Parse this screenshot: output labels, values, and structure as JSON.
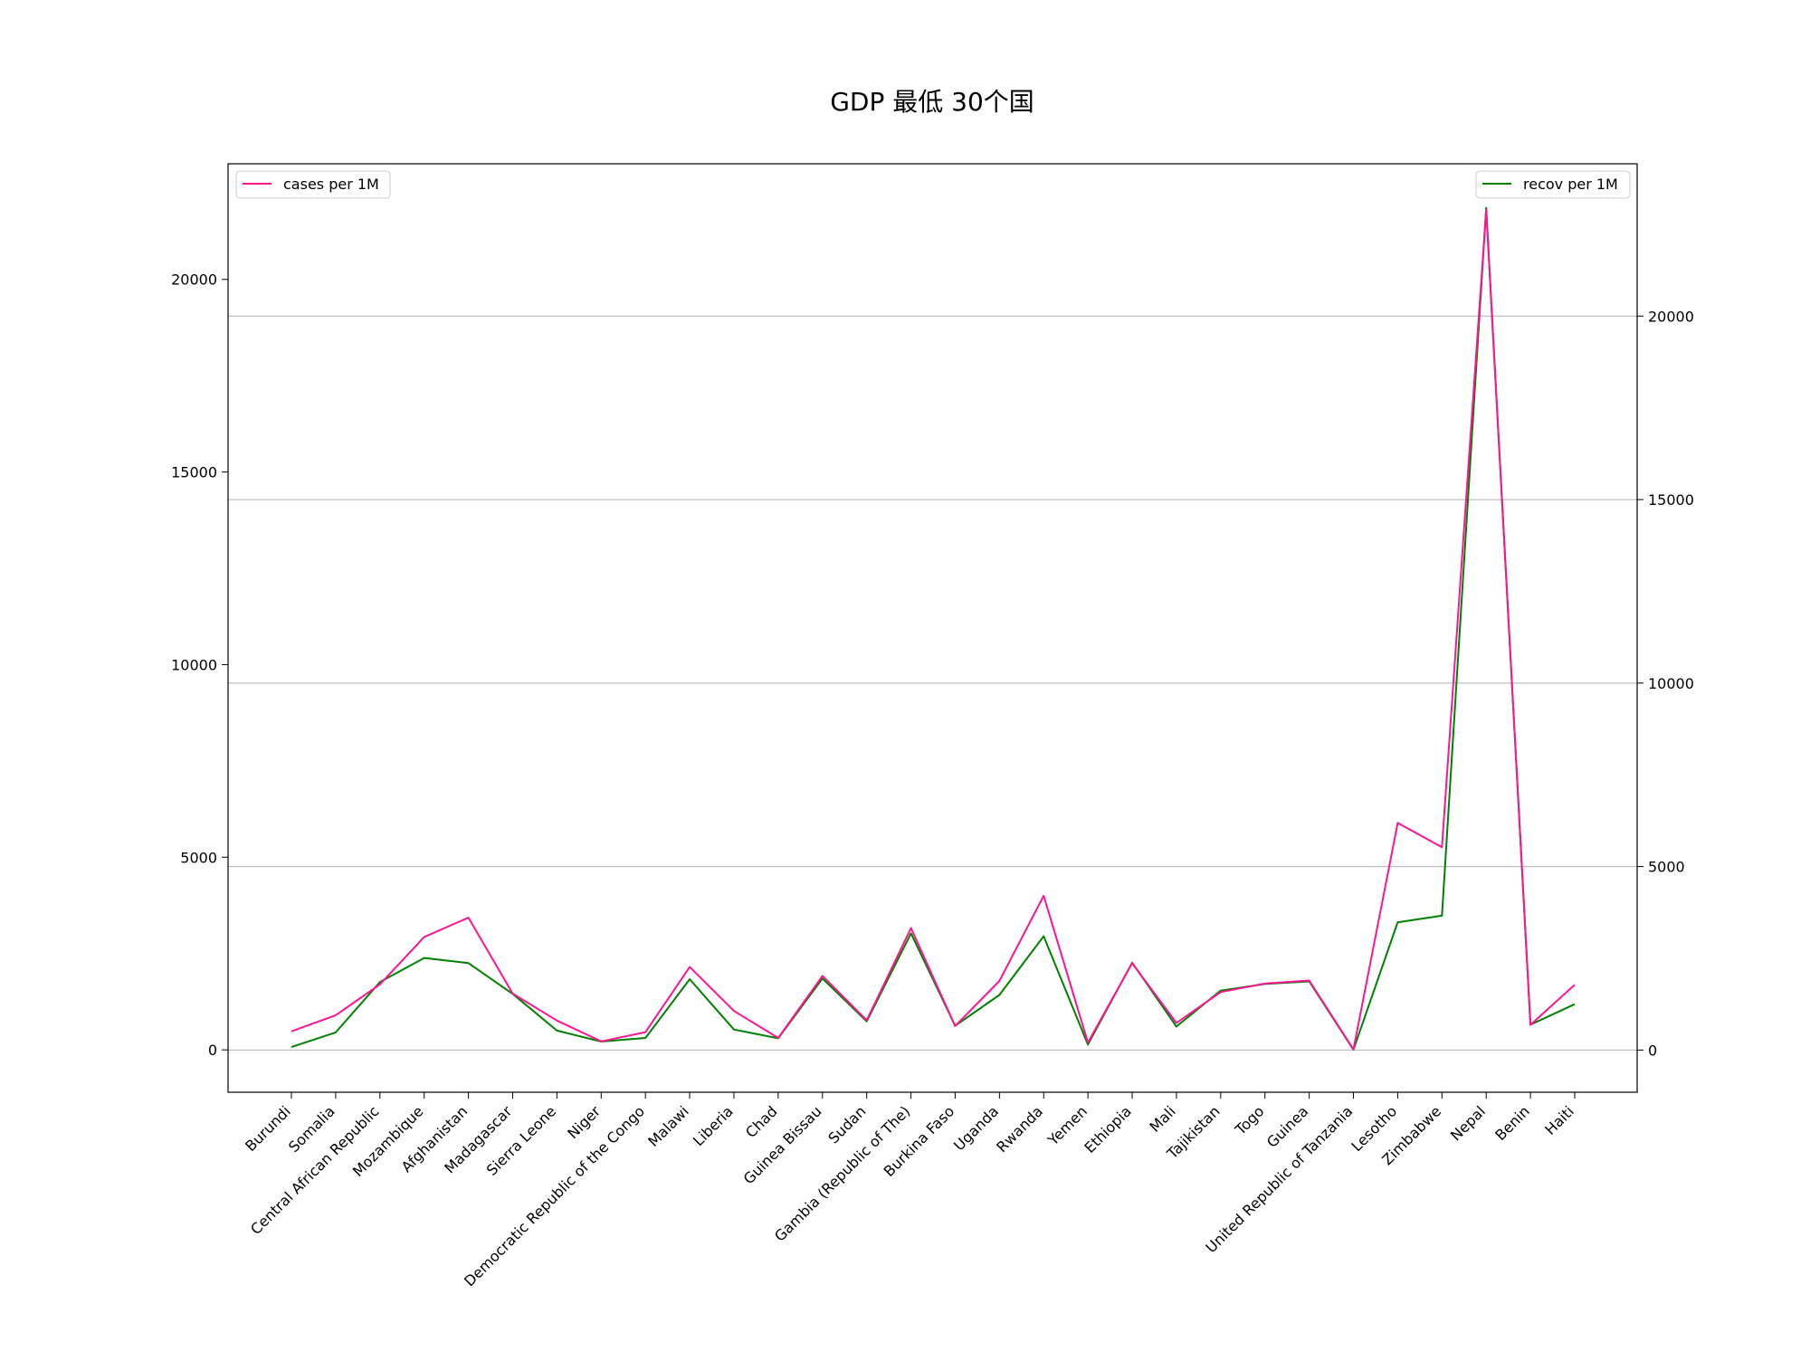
{
  "chart_data": {
    "type": "line",
    "title": "GDP 最低 30个国",
    "categories": [
      "Burundi",
      "Somalia",
      "Central African Republic",
      "Mozambique",
      "Afghanistan",
      "Madagascar",
      "Sierra Leone",
      "Niger",
      "Democratic Republic of the Congo",
      "Malawi",
      "Liberia",
      "Chad",
      "Guinea Bissau",
      "Sudan",
      "Gambia (Republic of The)",
      "Burkina Faso",
      "Uganda",
      "Rwanda",
      "Yemen",
      "Ethiopia",
      "Mali",
      "Tajikistan",
      "Togo",
      "Guinea",
      "United Republic of Tanzania",
      "Lesotho",
      "Zimbabwe",
      "Nepal",
      "Benin",
      "Haiti"
    ],
    "axes": {
      "left": {
        "ylim": [
          -1100,
          23000
        ],
        "ticks": [
          0,
          5000,
          10000,
          15000,
          20000
        ],
        "tick_labels": [
          "0",
          "5000",
          "10000",
          "15000",
          "20000"
        ]
      },
      "right": {
        "ylim": [
          -1150,
          24150
        ],
        "ticks": [
          0,
          5000,
          10000,
          15000,
          20000
        ],
        "tick_labels": [
          "0",
          "5000",
          "10000",
          "15000",
          "20000"
        ],
        "grid": true
      }
    },
    "series": [
      {
        "name": "cases per 1M",
        "axis": "left",
        "color": "#ff1493",
        "legend": "top-left",
        "values": [
          480,
          900,
          1700,
          2930,
          3430,
          1460,
          760,
          220,
          460,
          2150,
          1010,
          310,
          1920,
          770,
          3160,
          620,
          1790,
          4000,
          190,
          2250,
          700,
          1500,
          1720,
          1800,
          10,
          5890,
          5260,
          21800,
          650,
          1690
        ]
      },
      {
        "name": "recov per 1M",
        "axis": "right",
        "color": "#008000",
        "legend": "top-right",
        "values": [
          80,
          480,
          1850,
          2510,
          2370,
          1530,
          530,
          230,
          330,
          1930,
          560,
          320,
          1950,
          780,
          3180,
          660,
          1500,
          3100,
          150,
          2380,
          640,
          1620,
          1800,
          1870,
          10,
          3480,
          3660,
          22950,
          690,
          1250
        ]
      }
    ]
  }
}
